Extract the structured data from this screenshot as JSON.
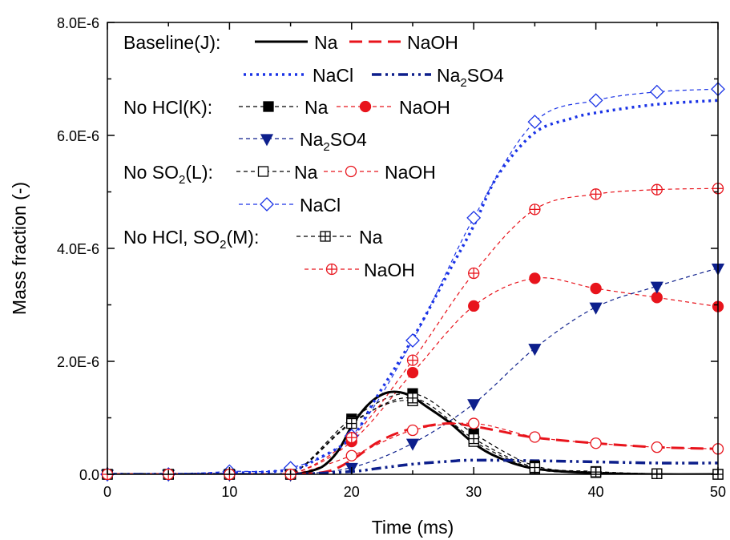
{
  "chart_data": {
    "type": "line",
    "title": "",
    "xlabel": "Time (ms)",
    "ylabel": "Mass fraction (-)",
    "xlim": [
      0,
      50
    ],
    "ylim": [
      0,
      8e-06
    ],
    "x_ticks": [
      "0",
      "10",
      "20",
      "30",
      "40",
      "50"
    ],
    "y_ticks": [
      "0.0",
      "2.0E-6",
      "4.0E-6",
      "6.0E-6",
      "8.0E-6"
    ],
    "grid": false,
    "legend_position": "top-left",
    "legend_groups": [
      {
        "label": "Baseline(J):"
      },
      {
        "label": "No HCl(K):"
      },
      {
        "label": "No SO2(L):"
      },
      {
        "label": "No HCl, SO2(M):"
      }
    ],
    "series": [
      {
        "name": "Na",
        "group": "Baseline(J)",
        "color": "#000000",
        "style": "solid",
        "marker": "none",
        "x": [
          0,
          5,
          10,
          15,
          17,
          18,
          19,
          20,
          21,
          22,
          23,
          24,
          25,
          26,
          28,
          30,
          32,
          35,
          40,
          45,
          50
        ],
        "y": [
          0,
          0,
          0,
          0,
          8e-08,
          2e-07,
          4.5e-07,
          8.5e-07,
          1.15e-06,
          1.35e-06,
          1.45e-06,
          1.45e-06,
          1.37e-06,
          1.22e-06,
          9.2e-07,
          5.5e-07,
          3e-07,
          1e-07,
          2e-08,
          0,
          0
        ]
      },
      {
        "name": "NaOH",
        "group": "Baseline(J)",
        "color": "#e8141c",
        "style": "dash",
        "marker": "none",
        "x": [
          0,
          5,
          10,
          15,
          18,
          20,
          22,
          24,
          26,
          28,
          30,
          32,
          35,
          40,
          45,
          50
        ],
        "y": [
          0,
          0,
          0,
          0,
          5e-08,
          2.5e-07,
          5.5e-07,
          7.5e-07,
          8.5e-07,
          9e-07,
          8.5e-07,
          7.7e-07,
          6.5e-07,
          5.5e-07,
          4.8e-07,
          4.5e-07
        ]
      },
      {
        "name": "NaCl",
        "group": "Baseline(J)",
        "color": "#1a33e6",
        "style": "dot",
        "marker": "none",
        "x": [
          0,
          5,
          10,
          15,
          17,
          20,
          22,
          25,
          28,
          30,
          32,
          35,
          38,
          40,
          45,
          50
        ],
        "y": [
          0,
          0,
          2e-08,
          8e-08,
          2.5e-07,
          6.5e-07,
          1.35e-06,
          2.4e-06,
          3.6e-06,
          4.4e-06,
          5.3e-06,
          6.05e-06,
          6.3e-06,
          6.4e-06,
          6.55e-06,
          6.62e-06
        ]
      },
      {
        "name": "Na2SO4",
        "group": "Baseline(J)",
        "color": "#0d1f8c",
        "style": "dashdotdot",
        "marker": "none",
        "x": [
          0,
          5,
          10,
          15,
          20,
          22,
          25,
          28,
          30,
          35,
          40,
          45,
          50
        ],
        "y": [
          0,
          0,
          0,
          0,
          5e-08,
          1e-07,
          1.8e-07,
          2.3e-07,
          2.5e-07,
          2.4e-07,
          2.2e-07,
          2e-07,
          2e-07
        ]
      },
      {
        "name": "Na",
        "group": "No HCl(K)",
        "color": "#000000",
        "style": "thindash",
        "marker": "square-filled",
        "x": [
          0,
          5,
          10,
          15,
          20,
          25,
          30,
          35,
          40,
          45,
          50
        ],
        "y": [
          0,
          0,
          0,
          0,
          9.8e-07,
          1.43e-06,
          7.2e-07,
          1.5e-07,
          5e-08,
          1e-08,
          0
        ]
      },
      {
        "name": "NaOH",
        "group": "No HCl(K)",
        "color": "#e8141c",
        "style": "thindash",
        "marker": "circle-filled",
        "x": [
          0,
          5,
          10,
          15,
          20,
          25,
          30,
          35,
          40,
          45,
          50
        ],
        "y": [
          0,
          0,
          0,
          0,
          5.8e-07,
          1.8e-06,
          2.98e-06,
          3.47e-06,
          3.29e-06,
          3.13e-06,
          2.97e-06
        ]
      },
      {
        "name": "Na2SO4",
        "group": "No HCl(K)",
        "color": "#0d1f8c",
        "style": "thindash",
        "marker": "triangle-down-filled",
        "x": [
          0,
          5,
          10,
          15,
          20,
          25,
          30,
          35,
          40,
          45,
          50
        ],
        "y": [
          0,
          0,
          0,
          0,
          1.2e-07,
          5.5e-07,
          1.25e-06,
          2.23e-06,
          2.96e-06,
          3.33e-06,
          3.65e-06
        ]
      },
      {
        "name": "Na",
        "group": "No SO2(L)",
        "color": "#000000",
        "style": "thindash",
        "marker": "square-open",
        "x": [
          0,
          5,
          10,
          15,
          20,
          25,
          30,
          35,
          40,
          45,
          50
        ],
        "y": [
          0,
          0,
          0,
          0,
          9.2e-07,
          1.3e-06,
          5.8e-07,
          1e-07,
          3e-08,
          1e-08,
          0
        ]
      },
      {
        "name": "NaOH",
        "group": "No SO2(L)",
        "color": "#e8141c",
        "style": "thindash",
        "marker": "circle-open",
        "x": [
          0,
          5,
          10,
          15,
          20,
          25,
          30,
          35,
          40,
          45,
          50
        ],
        "y": [
          0,
          0,
          0,
          0,
          3.3e-07,
          7.8e-07,
          9e-07,
          6.6e-07,
          5.5e-07,
          4.8e-07,
          4.5e-07
        ]
      },
      {
        "name": "NaCl",
        "group": "No SO2(L)",
        "color": "#1a33e6",
        "style": "thindash",
        "marker": "diamond-open",
        "x": [
          0,
          5,
          10,
          15,
          20,
          25,
          30,
          35,
          40,
          45,
          50
        ],
        "y": [
          0,
          0,
          5e-08,
          1.1e-07,
          6.8e-07,
          2.37e-06,
          4.54e-06,
          6.24e-06,
          6.62e-06,
          6.77e-06,
          6.82e-06
        ]
      },
      {
        "name": "Na",
        "group": "No HCl, SO2(M)",
        "color": "#000000",
        "style": "thindash",
        "marker": "square-crossed",
        "x": [
          0,
          5,
          10,
          15,
          20,
          25,
          30,
          35,
          40,
          45,
          50
        ],
        "y": [
          0,
          0,
          0,
          0,
          9e-07,
          1.35e-06,
          6.3e-07,
          1.2e-07,
          4e-08,
          1e-08,
          0
        ]
      },
      {
        "name": "NaOH",
        "group": "No HCl, SO2(M)",
        "color": "#e8141c",
        "style": "thindash",
        "marker": "circle-crossed",
        "x": [
          0,
          5,
          10,
          15,
          20,
          25,
          30,
          35,
          40,
          45,
          50
        ],
        "y": [
          0,
          0,
          0,
          0,
          6.5e-07,
          2.02e-06,
          3.56e-06,
          4.69e-06,
          4.96e-06,
          5.04e-06,
          5.06e-06
        ]
      }
    ]
  }
}
